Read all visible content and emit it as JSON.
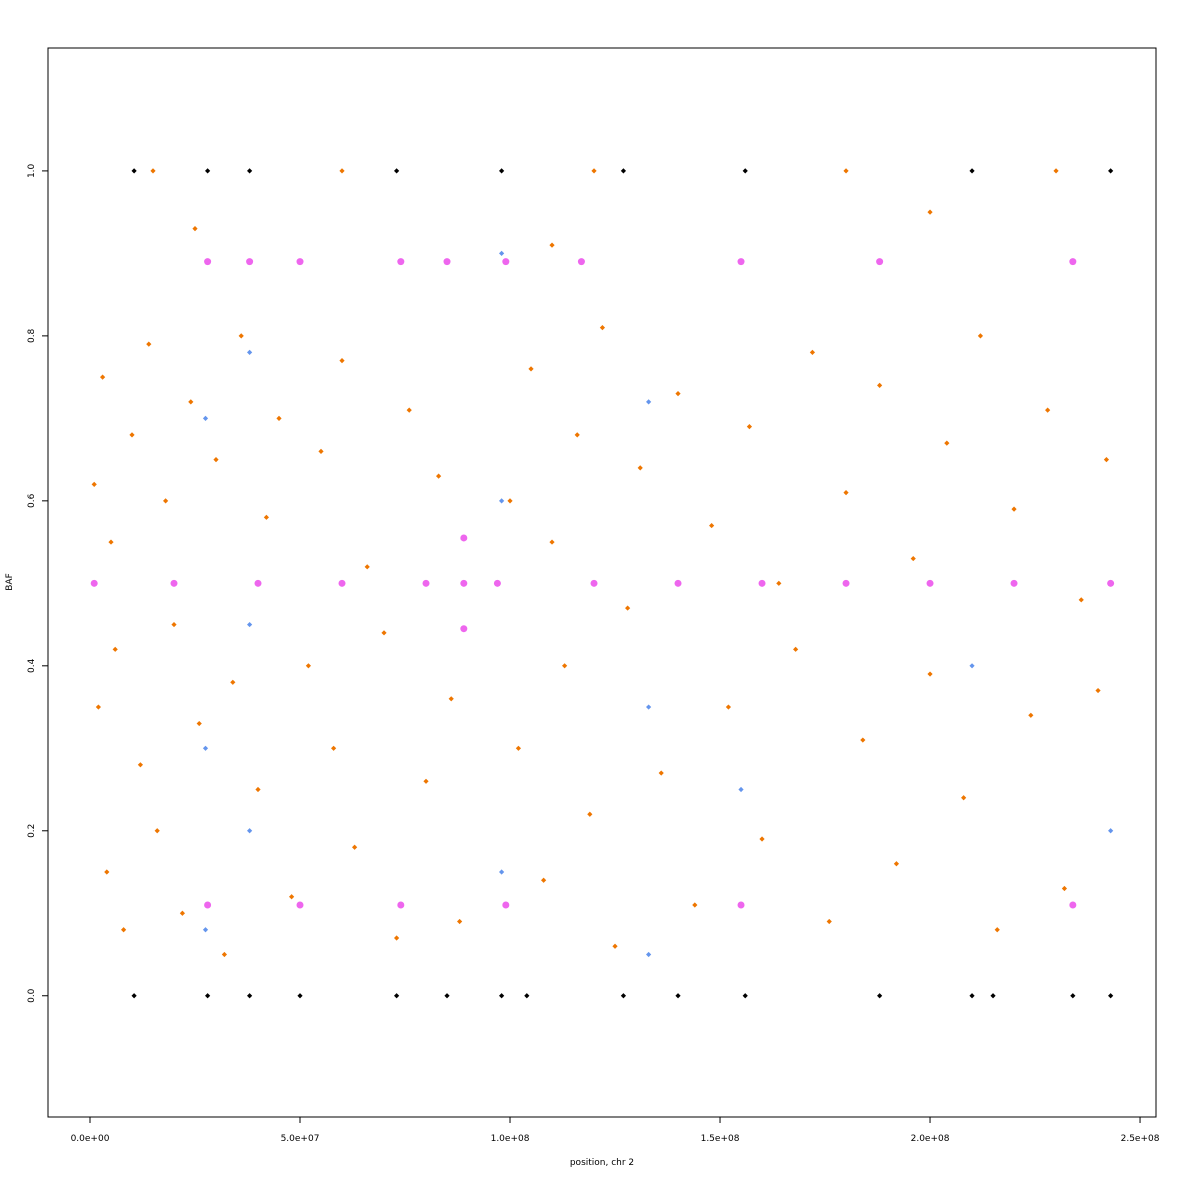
{
  "chart_data": {
    "type": "scatter",
    "x_label": "position, chr 2",
    "y_label": "BAF",
    "xlim": [
      -10000000,
      253800000
    ],
    "ylim": [
      -0.147,
      1.149
    ],
    "xticks": [
      {
        "value": 0,
        "label": "0.0e+00"
      },
      {
        "value": 50000000,
        "label": "5.0e+07"
      },
      {
        "value": 100000000,
        "label": "1.0e+08"
      },
      {
        "value": 150000000,
        "label": "1.5e+08"
      },
      {
        "value": 200000000,
        "label": "2.0e+08"
      },
      {
        "value": 250000000,
        "label": "2.5e+08"
      }
    ],
    "yticks": [
      {
        "value": 0,
        "label": "0.0"
      },
      0.2,
      0.4,
      0.6,
      0.8,
      {
        "value": 1,
        "label": "1.0"
      }
    ],
    "series": [
      {
        "color": "#ee7600",
        "marker": "diamond",
        "x": [
          1000000,
          2000000,
          3000000,
          4000000,
          5000000,
          6000000,
          8000000,
          10000000,
          12000000,
          14000000,
          16000000,
          18000000,
          20000000,
          22000000,
          24000000,
          26000000,
          30000000,
          32000000,
          34000000,
          36000000,
          40000000,
          42000000,
          45000000,
          48000000,
          52000000,
          55000000,
          58000000,
          60000000,
          63000000,
          66000000,
          70000000,
          73000000,
          76000000,
          80000000,
          83000000,
          86000000,
          88000000,
          100000000,
          102000000,
          105000000,
          108000000,
          110000000,
          113000000,
          116000000,
          119000000,
          122000000,
          125000000,
          128000000,
          131000000,
          136000000,
          140000000,
          144000000,
          148000000,
          152000000,
          157000000,
          160000000,
          164000000,
          168000000,
          172000000,
          176000000,
          180000000,
          184000000,
          188000000,
          192000000,
          196000000,
          200000000,
          204000000,
          208000000,
          212000000,
          216000000,
          220000000,
          224000000,
          228000000,
          232000000,
          236000000,
          240000000,
          242000000,
          15000000,
          60000000,
          120000000,
          180000000,
          230000000,
          25000000,
          110000000,
          200000000
        ],
        "values": [
          0.62,
          0.35,
          0.75,
          0.15,
          0.55,
          0.42,
          0.08,
          0.68,
          0.28,
          0.79,
          0.2,
          0.6,
          0.45,
          0.1,
          0.72,
          0.33,
          0.65,
          0.05,
          0.38,
          0.8,
          0.25,
          0.58,
          0.7,
          0.12,
          0.4,
          0.66,
          0.3,
          0.77,
          0.18,
          0.52,
          0.44,
          0.07,
          0.71,
          0.26,
          0.63,
          0.36,
          0.09,
          0.6,
          0.3,
          0.76,
          0.14,
          0.55,
          0.4,
          0.68,
          0.22,
          0.81,
          0.06,
          0.47,
          0.64,
          0.27,
          0.73,
          0.11,
          0.57,
          0.35,
          0.69,
          0.19,
          0.5,
          0.42,
          0.78,
          0.09,
          0.61,
          0.31,
          0.74,
          0.16,
          0.53,
          0.39,
          0.67,
          0.24,
          0.8,
          0.08,
          0.59,
          0.34,
          0.71,
          0.13,
          0.48,
          0.37,
          0.65,
          1,
          1,
          1,
          1,
          1,
          0.93,
          0.91,
          0.95
        ]
      },
      {
        "color": "#6495ed",
        "marker": "diamond",
        "x": [
          27500000,
          27500000,
          27500000,
          38000000,
          38000000,
          38000000,
          98000000,
          98000000,
          98000000,
          133000000,
          133000000,
          133000000,
          155000000,
          210000000,
          243000000
        ],
        "values": [
          0.3,
          0.7,
          0.08,
          0.45,
          0.2,
          0.78,
          0.15,
          0.6,
          0.9,
          0.05,
          0.35,
          0.72,
          0.25,
          0.4,
          0.2
        ]
      },
      {
        "color": "#ee66ee",
        "marker": "circle",
        "x": [
          1000000,
          20000000,
          40000000,
          60000000,
          80000000,
          89000000,
          97000000,
          120000000,
          140000000,
          160000000,
          180000000,
          200000000,
          220000000,
          243000000,
          28000000,
          38000000,
          50000000,
          74000000,
          85000000,
          99000000,
          117000000,
          155000000,
          188000000,
          234000000,
          28000000,
          50000000,
          74000000,
          99000000,
          155000000,
          234000000,
          89000000,
          89000000
        ],
        "values": [
          0.5,
          0.5,
          0.5,
          0.5,
          0.5,
          0.5,
          0.5,
          0.5,
          0.5,
          0.5,
          0.5,
          0.5,
          0.5,
          0.5,
          0.89,
          0.89,
          0.89,
          0.89,
          0.89,
          0.89,
          0.89,
          0.89,
          0.89,
          0.89,
          0.11,
          0.11,
          0.11,
          0.11,
          0.11,
          0.11,
          0.555,
          0.445
        ]
      },
      {
        "color": "#000000",
        "marker": "diamond",
        "x": [
          10500000,
          28000000,
          38000000,
          50000000,
          73000000,
          85000000,
          98000000,
          104000000,
          127000000,
          140000000,
          156000000,
          188000000,
          210000000,
          215000000,
          234000000,
          243000000,
          10500000,
          28000000,
          38000000,
          73000000,
          98000000,
          127000000,
          156000000,
          210000000,
          243000000
        ],
        "values": [
          0,
          0,
          0,
          0,
          0,
          0,
          0,
          0,
          0,
          0,
          0,
          0,
          0,
          0,
          0,
          0,
          1,
          1,
          1,
          1,
          1,
          1,
          1,
          1,
          1
        ]
      }
    ]
  }
}
